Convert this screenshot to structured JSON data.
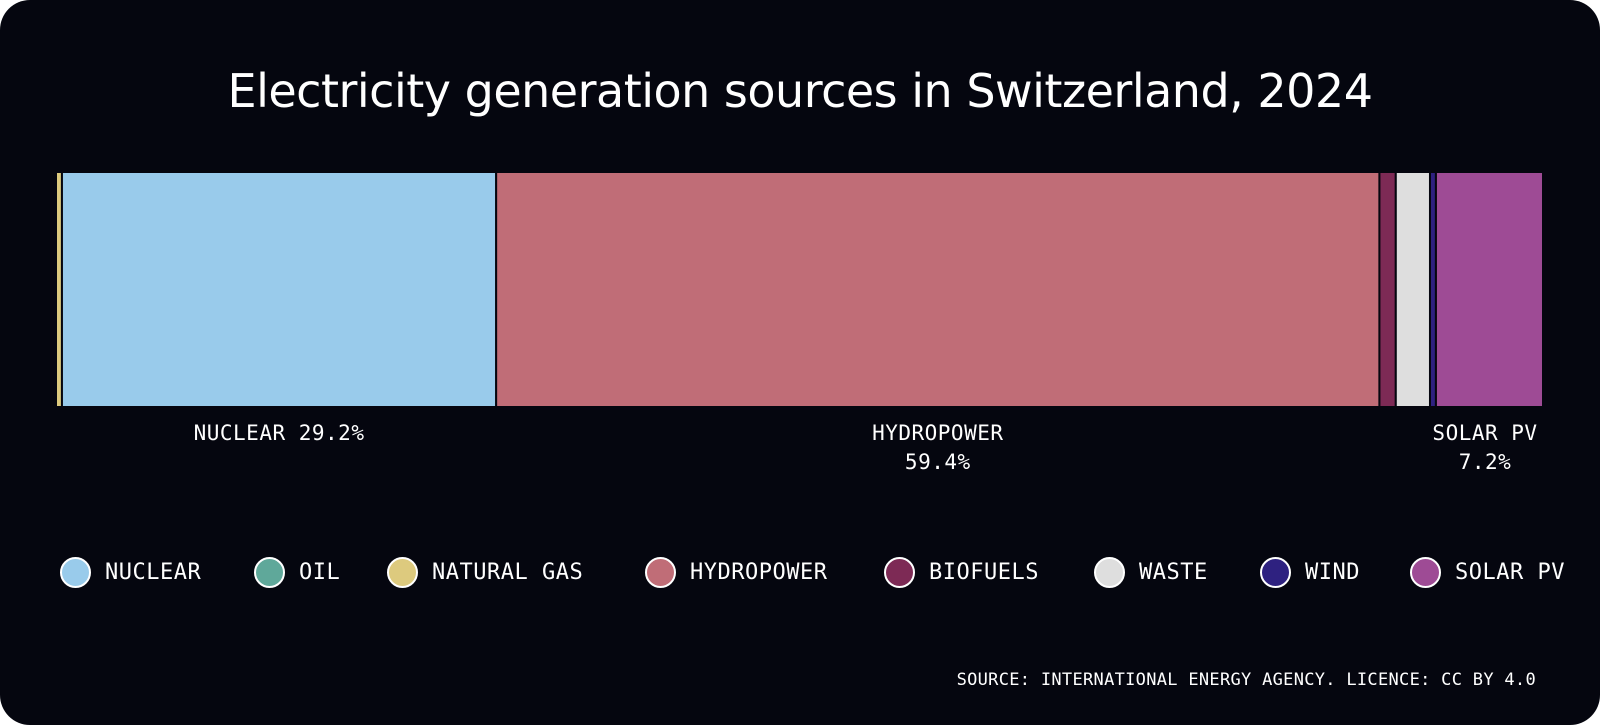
{
  "chart_data": {
    "type": "bar",
    "orientation": "horizontal-stacked-100",
    "title": "Electricity generation sources in Switzerland, 2024",
    "xlabel": "",
    "ylabel": "",
    "unit": "%",
    "grid": false,
    "legend_placement": "bottom",
    "series": [
      {
        "name": "NATURAL GAS",
        "value": 0.4,
        "color": "#ddca7e"
      },
      {
        "name": "NUCLEAR",
        "value": 29.2,
        "color": "#99cbeb",
        "label_lines": [
          "NUCLEAR 29.2%"
        ]
      },
      {
        "name": "HYDROPOWER",
        "value": 59.4,
        "color": "#c06d77",
        "label_lines": [
          "HYDROPOWER",
          "59.4%"
        ]
      },
      {
        "name": "BIOFUELS",
        "value": 1.1,
        "color": "#7d2a55"
      },
      {
        "name": "WASTE",
        "value": 2.3,
        "color": "#dedede"
      },
      {
        "name": "WIND",
        "value": 0.4,
        "color": "#2e2180"
      },
      {
        "name": "SOLAR PV",
        "value": 7.2,
        "color": "#9e4b95",
        "label_lines": [
          "SOLAR PV",
          "7.2%"
        ]
      }
    ]
  },
  "legend": [
    {
      "label": "NUCLEAR",
      "color": "#99cbeb"
    },
    {
      "label": "OIL",
      "color": "#5fa89a"
    },
    {
      "label": "NATURAL GAS",
      "color": "#ddca7e"
    },
    {
      "label": "HYDROPOWER",
      "color": "#c06d77"
    },
    {
      "label": "BIOFUELS",
      "color": "#7d2a55"
    },
    {
      "label": "WASTE",
      "color": "#dedede"
    },
    {
      "label": "WIND",
      "color": "#2e2180"
    },
    {
      "label": "SOLAR PV",
      "color": "#9e4b95"
    }
  ],
  "source": "SOURCE: INTERNATIONAL ENERGY AGENCY. LICENCE: CC BY 4.0",
  "colors": {
    "background": "#05060f",
    "text": "#ffffff",
    "divider": "#05060f"
  }
}
